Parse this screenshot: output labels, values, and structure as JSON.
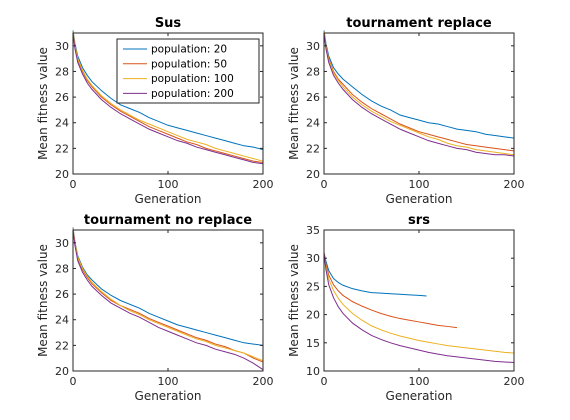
{
  "chart_data": [
    {
      "type": "line",
      "title": "Sus",
      "xlabel": "Generation",
      "ylabel": "Mean fitness value",
      "xlim": [
        0,
        200
      ],
      "ylim": [
        20,
        31
      ],
      "xticks": [
        "0",
        "100",
        "200"
      ],
      "yticks": [
        "20",
        "22",
        "24",
        "26",
        "28",
        "30"
      ],
      "grid": false,
      "legend": "top-right",
      "series": [
        {
          "name": "population: 20",
          "color": "#0072BD",
          "x": [
            0,
            2,
            5,
            10,
            15,
            20,
            30,
            40,
            50,
            60,
            70,
            80,
            90,
            100,
            110,
            120,
            130,
            140,
            150,
            160,
            170,
            180,
            190,
            200
          ],
          "y": [
            31.2,
            30.2,
            29.2,
            28.3,
            27.7,
            27.2,
            26.5,
            25.9,
            25.4,
            25.1,
            24.8,
            24.4,
            24.1,
            23.8,
            23.6,
            23.4,
            23.2,
            23.0,
            22.8,
            22.6,
            22.4,
            22.2,
            22.1,
            21.9
          ]
        },
        {
          "name": "population: 50",
          "color": "#D95319",
          "x": [
            0,
            2,
            5,
            10,
            15,
            20,
            30,
            40,
            50,
            60,
            70,
            80,
            90,
            100,
            110,
            120,
            130,
            140,
            150,
            160,
            170,
            180,
            190,
            200
          ],
          "y": [
            31.1,
            30.0,
            28.9,
            28.0,
            27.3,
            26.8,
            26.0,
            25.4,
            24.9,
            24.5,
            24.1,
            23.7,
            23.4,
            23.1,
            22.8,
            22.5,
            22.3,
            22.0,
            21.8,
            21.6,
            21.4,
            21.2,
            21.0,
            20.9
          ]
        },
        {
          "name": "population: 100",
          "color": "#EDB120",
          "x": [
            0,
            2,
            5,
            10,
            15,
            20,
            30,
            40,
            50,
            60,
            70,
            80,
            90,
            100,
            110,
            120,
            130,
            140,
            150,
            160,
            170,
            180,
            190,
            200
          ],
          "y": [
            31.1,
            30.1,
            29.0,
            28.1,
            27.4,
            26.9,
            26.1,
            25.5,
            25.0,
            24.6,
            24.2,
            23.9,
            23.6,
            23.3,
            23.0,
            22.7,
            22.5,
            22.3,
            22.0,
            21.8,
            21.6,
            21.4,
            21.2,
            21.0
          ]
        },
        {
          "name": "population: 200",
          "color": "#7E2F8E",
          "x": [
            0,
            2,
            5,
            10,
            15,
            20,
            30,
            40,
            50,
            60,
            70,
            80,
            90,
            100,
            110,
            120,
            130,
            140,
            150,
            160,
            170,
            180,
            190,
            200
          ],
          "y": [
            31.0,
            29.8,
            28.7,
            27.8,
            27.1,
            26.6,
            25.8,
            25.2,
            24.7,
            24.3,
            23.9,
            23.5,
            23.2,
            22.9,
            22.6,
            22.4,
            22.1,
            21.9,
            21.7,
            21.5,
            21.3,
            21.1,
            20.9,
            20.8
          ]
        }
      ]
    },
    {
      "type": "line",
      "title": "tournament replace",
      "xlabel": "Generation",
      "ylabel": "Mean fitness value",
      "xlim": [
        0,
        200
      ],
      "ylim": [
        20,
        31
      ],
      "xticks": [
        "0",
        "100",
        "200"
      ],
      "yticks": [
        "20",
        "22",
        "24",
        "26",
        "28",
        "30"
      ],
      "grid": false,
      "series": [
        {
          "name": "population: 20",
          "color": "#0072BD",
          "x": [
            0,
            2,
            5,
            10,
            15,
            20,
            30,
            40,
            50,
            60,
            70,
            80,
            90,
            100,
            110,
            120,
            130,
            140,
            150,
            160,
            170,
            180,
            190,
            200
          ],
          "y": [
            31.2,
            30.2,
            29.2,
            28.3,
            27.8,
            27.4,
            26.8,
            26.2,
            25.7,
            25.3,
            25.0,
            24.6,
            24.4,
            24.2,
            24.0,
            23.9,
            23.7,
            23.5,
            23.4,
            23.3,
            23.1,
            23.0,
            22.9,
            22.8
          ]
        },
        {
          "name": "population: 50",
          "color": "#D95319",
          "x": [
            0,
            2,
            5,
            10,
            15,
            20,
            30,
            40,
            50,
            60,
            70,
            80,
            90,
            100,
            110,
            120,
            130,
            140,
            150,
            160,
            170,
            180,
            190,
            200
          ],
          "y": [
            31.1,
            30.0,
            29.0,
            28.0,
            27.4,
            27.0,
            26.2,
            25.6,
            25.1,
            24.7,
            24.3,
            23.9,
            23.6,
            23.3,
            23.1,
            22.9,
            22.7,
            22.5,
            22.3,
            22.2,
            22.1,
            22.0,
            21.9,
            21.8
          ]
        },
        {
          "name": "population: 100",
          "color": "#EDB120",
          "x": [
            0,
            2,
            5,
            10,
            15,
            20,
            30,
            40,
            50,
            60,
            70,
            80,
            90,
            100,
            110,
            120,
            130,
            140,
            150,
            160,
            170,
            180,
            190,
            200
          ],
          "y": [
            31.1,
            30.0,
            28.9,
            27.9,
            27.3,
            26.8,
            26.0,
            25.4,
            24.9,
            24.5,
            24.1,
            23.8,
            23.5,
            23.2,
            22.9,
            22.7,
            22.4,
            22.2,
            22.1,
            21.9,
            21.8,
            21.7,
            21.6,
            21.5
          ]
        },
        {
          "name": "population: 200",
          "color": "#7E2F8E",
          "x": [
            0,
            2,
            5,
            10,
            15,
            20,
            30,
            40,
            50,
            60,
            70,
            80,
            90,
            100,
            110,
            120,
            130,
            140,
            150,
            160,
            170,
            180,
            190,
            200
          ],
          "y": [
            31.0,
            29.8,
            28.7,
            27.7,
            27.1,
            26.6,
            25.8,
            25.2,
            24.7,
            24.3,
            23.9,
            23.5,
            23.2,
            22.9,
            22.6,
            22.4,
            22.2,
            22.0,
            21.9,
            21.7,
            21.6,
            21.5,
            21.5,
            21.4
          ]
        }
      ]
    },
    {
      "type": "line",
      "title": "tournament no replace",
      "xlabel": "Generation",
      "ylabel": "Mean fitness value",
      "xlim": [
        0,
        200
      ],
      "ylim": [
        20,
        31
      ],
      "xticks": [
        "0",
        "100",
        "200"
      ],
      "yticks": [
        "20",
        "22",
        "24",
        "26",
        "28",
        "30"
      ],
      "grid": false,
      "series": [
        {
          "name": "population: 20",
          "color": "#0072BD",
          "x": [
            0,
            2,
            5,
            10,
            15,
            20,
            30,
            40,
            50,
            60,
            70,
            80,
            90,
            100,
            110,
            120,
            130,
            140,
            150,
            160,
            170,
            180,
            190,
            200
          ],
          "y": [
            31.2,
            30.1,
            29.0,
            28.1,
            27.5,
            27.1,
            26.4,
            25.9,
            25.5,
            25.2,
            24.9,
            24.5,
            24.2,
            23.9,
            23.6,
            23.4,
            23.2,
            23.0,
            22.8,
            22.6,
            22.4,
            22.2,
            22.1,
            22.0
          ]
        },
        {
          "name": "population: 50",
          "color": "#D95319",
          "x": [
            0,
            2,
            5,
            10,
            15,
            20,
            30,
            40,
            50,
            60,
            70,
            80,
            90,
            100,
            110,
            120,
            130,
            140,
            150,
            160,
            170,
            180,
            190,
            200
          ],
          "y": [
            31.1,
            30.0,
            28.8,
            27.9,
            27.3,
            26.8,
            26.1,
            25.5,
            25.1,
            24.8,
            24.5,
            24.1,
            23.8,
            23.5,
            23.2,
            22.9,
            22.6,
            22.4,
            22.1,
            21.9,
            21.6,
            21.4,
            21.0,
            20.7
          ]
        },
        {
          "name": "population: 100",
          "color": "#EDB120",
          "x": [
            0,
            2,
            5,
            10,
            15,
            20,
            30,
            40,
            50,
            60,
            70,
            80,
            90,
            100,
            110,
            120,
            130,
            140,
            150,
            160,
            170,
            180,
            190,
            200
          ],
          "y": [
            31.1,
            30.0,
            28.9,
            28.0,
            27.4,
            26.9,
            26.2,
            25.6,
            25.1,
            24.7,
            24.4,
            24.0,
            23.7,
            23.4,
            23.1,
            22.8,
            22.5,
            22.3,
            22.0,
            21.8,
            21.6,
            21.4,
            21.1,
            20.8
          ]
        },
        {
          "name": "population: 200",
          "color": "#7E2F8E",
          "x": [
            0,
            2,
            5,
            10,
            15,
            20,
            30,
            40,
            50,
            60,
            70,
            80,
            90,
            100,
            110,
            120,
            130,
            140,
            150,
            160,
            170,
            180,
            190,
            200
          ],
          "y": [
            31.0,
            29.8,
            28.6,
            27.7,
            27.1,
            26.6,
            25.9,
            25.3,
            24.9,
            24.5,
            24.2,
            23.8,
            23.4,
            23.1,
            22.8,
            22.5,
            22.2,
            22.0,
            21.7,
            21.5,
            21.3,
            21.0,
            20.6,
            20.1
          ]
        }
      ]
    },
    {
      "type": "line",
      "title": "srs",
      "xlabel": "Generation",
      "ylabel": "Mean fitness value",
      "xlim": [
        0,
        200
      ],
      "ylim": [
        10,
        35
      ],
      "xticks": [
        "0",
        "100",
        "200"
      ],
      "yticks": [
        "10",
        "15",
        "20",
        "25",
        "30",
        "35"
      ],
      "grid": false,
      "series": [
        {
          "name": "population: 20",
          "color": "#0072BD",
          "x": [
            0,
            2,
            5,
            10,
            15,
            20,
            30,
            40,
            50,
            60,
            70,
            80,
            90,
            100,
            108
          ],
          "y": [
            31.0,
            29.5,
            27.8,
            26.4,
            25.7,
            25.2,
            24.6,
            24.2,
            23.9,
            23.8,
            23.7,
            23.6,
            23.5,
            23.4,
            23.3
          ]
        },
        {
          "name": "population: 50",
          "color": "#D95319",
          "x": [
            0,
            2,
            5,
            10,
            15,
            20,
            30,
            40,
            50,
            60,
            70,
            80,
            90,
            100,
            110,
            120,
            130,
            140
          ],
          "y": [
            31.0,
            29.0,
            27.0,
            25.3,
            24.2,
            23.4,
            22.3,
            21.5,
            20.8,
            20.2,
            19.7,
            19.3,
            19.0,
            18.7,
            18.4,
            18.1,
            17.9,
            17.7
          ]
        },
        {
          "name": "population: 100",
          "color": "#EDB120",
          "x": [
            0,
            2,
            5,
            10,
            15,
            20,
            30,
            40,
            50,
            60,
            70,
            80,
            90,
            100,
            110,
            120,
            130,
            140,
            150,
            160,
            170,
            180,
            190,
            200
          ],
          "y": [
            31.0,
            28.6,
            26.3,
            24.3,
            22.9,
            21.8,
            20.2,
            19.0,
            18.0,
            17.3,
            16.7,
            16.2,
            15.8,
            15.4,
            15.1,
            14.8,
            14.5,
            14.3,
            14.1,
            13.9,
            13.7,
            13.5,
            13.3,
            13.2
          ]
        },
        {
          "name": "population: 200",
          "color": "#7E2F8E",
          "x": [
            0,
            2,
            5,
            10,
            15,
            20,
            30,
            40,
            50,
            60,
            70,
            80,
            90,
            100,
            110,
            120,
            130,
            140,
            150,
            160,
            170,
            180,
            190,
            200
          ],
          "y": [
            31.0,
            28.0,
            25.3,
            23.0,
            21.4,
            20.2,
            18.5,
            17.3,
            16.3,
            15.6,
            15.0,
            14.5,
            14.1,
            13.7,
            13.3,
            13.0,
            12.7,
            12.5,
            12.3,
            12.1,
            11.9,
            11.7,
            11.6,
            11.5
          ]
        }
      ]
    }
  ]
}
